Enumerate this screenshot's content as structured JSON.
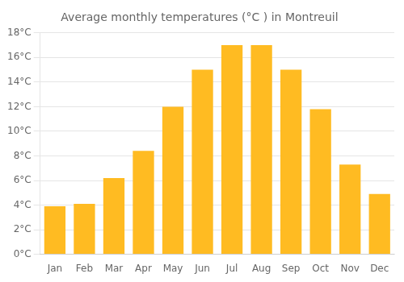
{
  "chart_data": {
    "type": "bar",
    "title": "Average monthly temperatures (°C ) in Montreuil",
    "categories": [
      "Jan",
      "Feb",
      "Mar",
      "Apr",
      "May",
      "Jun",
      "Jul",
      "Aug",
      "Sep",
      "Oct",
      "Nov",
      "Dec"
    ],
    "values": [
      3.9,
      4.1,
      6.2,
      8.4,
      12.0,
      15.0,
      17.0,
      17.0,
      15.0,
      11.8,
      7.3,
      4.9
    ],
    "color": "#FFBB22",
    "ylim": [
      0,
      18
    ],
    "yticks": [
      {
        "value": 0,
        "label": "0°C"
      },
      {
        "value": 2,
        "label": "2°C"
      },
      {
        "value": 4,
        "label": "4°C"
      },
      {
        "value": 6,
        "label": "6°C"
      },
      {
        "value": 8,
        "label": "8°C"
      },
      {
        "value": 10,
        "label": "10°C"
      },
      {
        "value": 12,
        "label": "12°C"
      },
      {
        "value": 14,
        "label": "14°C"
      },
      {
        "value": 16,
        "label": "16°C"
      },
      {
        "value": 18,
        "label": "18°C"
      }
    ],
    "grid": "y"
  }
}
